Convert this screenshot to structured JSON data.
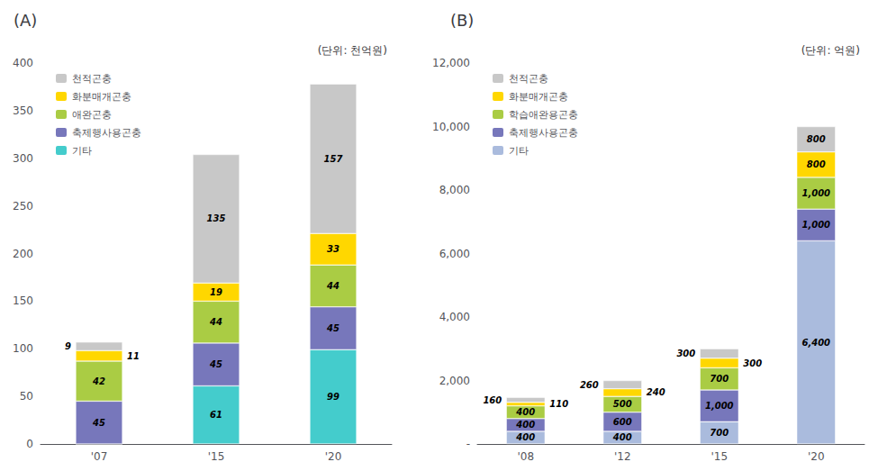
{
  "chart_data": [
    {
      "type": "bar",
      "title": "(A)",
      "ylabel": "(단위: 천억원)",
      "categories": [
        "'07",
        "'15",
        "'20"
      ],
      "stacked": true,
      "data_labels": true,
      "legend": "upper left",
      "grid": false,
      "ylim": [
        0,
        400
      ],
      "yticks": [
        0,
        50,
        100,
        150,
        200,
        250,
        300,
        350,
        400
      ],
      "series": [
        {
          "name": "기타",
          "color": "#44cccc",
          "values": [
            0,
            61,
            99
          ],
          "value_labels": [
            null,
            "61",
            "99"
          ]
        },
        {
          "name": "축제행사용곤충",
          "color": "#7777bb",
          "values": [
            45,
            45,
            45
          ]
        },
        {
          "name": "애완곤충",
          "color": "#aacc44",
          "values": [
            42,
            44,
            44
          ]
        },
        {
          "name": "화분매개곤충",
          "color": "#ffd700",
          "values": [
            11,
            19,
            33
          ]
        },
        {
          "name": "천적곤충",
          "color": "#c8c8c8",
          "values": [
            9,
            135,
            157
          ]
        }
      ]
    },
    {
      "type": "bar",
      "title": "(B)",
      "ylabel": "(단위: 억원)",
      "categories": [
        "'08",
        "'12",
        "'15",
        "'20"
      ],
      "stacked": true,
      "data_labels": true,
      "legend": "upper left",
      "grid": false,
      "ylim": [
        0,
        12000
      ],
      "yticks": [
        {
          "value": 0,
          "label": "-"
        },
        {
          "value": 2000,
          "label": "2,000"
        },
        {
          "value": 4000,
          "label": "4,000"
        },
        {
          "value": 6000,
          "label": "6,000"
        },
        {
          "value": 8000,
          "label": "8,000"
        },
        {
          "value": 10000,
          "label": "10,000"
        },
        {
          "value": 12000,
          "label": "12,000"
        }
      ],
      "series": [
        {
          "name": "기타",
          "color": "#aabbdd",
          "values": [
            400,
            400,
            700,
            6400
          ],
          "value_labels": [
            "400",
            "400",
            "700",
            "6,400"
          ]
        },
        {
          "name": "축제행사용곤충",
          "color": "#7777bb",
          "values": [
            400,
            600,
            1000,
            1000
          ],
          "value_labels": [
            "400",
            "600",
            "1,000",
            "1,000"
          ]
        },
        {
          "name": "학습애완용곤충",
          "color": "#aacc44",
          "values": [
            400,
            500,
            700,
            1000
          ],
          "value_labels": [
            "400",
            "500",
            "700",
            "1,000"
          ]
        },
        {
          "name": "화분매개곤충",
          "color": "#ffd700",
          "values": [
            110,
            240,
            300,
            800
          ]
        },
        {
          "name": "천적곤충",
          "color": "#c8c8c8",
          "values": [
            160,
            260,
            300,
            800
          ]
        }
      ]
    }
  ]
}
